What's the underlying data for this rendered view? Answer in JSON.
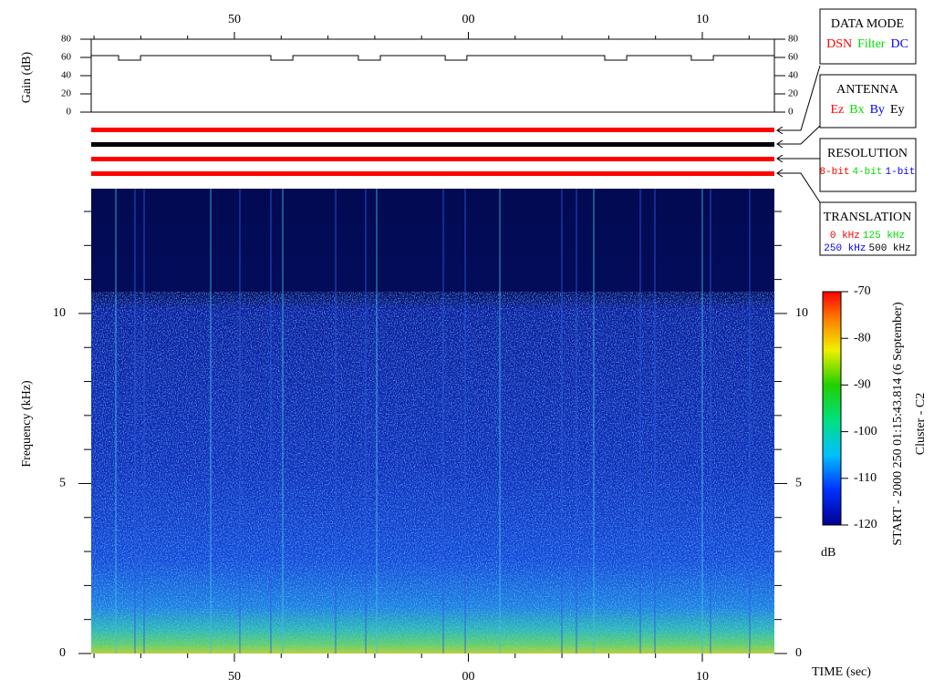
{
  "chart_data": [
    {
      "type": "line",
      "ylabel": "Gain (dB)",
      "xlim": [
        43.88,
        73.08
      ],
      "xticks": [
        50,
        {
          "value": 60,
          "label": "00"
        },
        {
          "value": 70,
          "label": "10"
        }
      ],
      "xminorticks": [
        44,
        46,
        48,
        52,
        54,
        56,
        58,
        62,
        64,
        66,
        68,
        72
      ],
      "ylim": [
        0,
        80
      ],
      "yticks": [
        0,
        20,
        40,
        60,
        80
      ],
      "color": "#000000",
      "x": [
        43.88,
        45.05,
        45.05,
        45.99,
        45.99,
        51.56,
        51.56,
        52.5,
        52.5,
        55.3,
        55.3,
        56.24,
        56.24,
        59.01,
        59.01,
        59.94,
        59.94,
        65.83,
        65.83,
        66.77,
        66.77,
        69.53,
        69.53,
        70.47,
        70.47,
        73.08
      ],
      "values": [
        62,
        62,
        57,
        57,
        62,
        62,
        57,
        57,
        62,
        62,
        57,
        57,
        62,
        62,
        57,
        57,
        62,
        62,
        57,
        57,
        62,
        62,
        57,
        57,
        62,
        62
      ]
    },
    {
      "type": "heatmap",
      "ylabel": "Frequency (kHz)",
      "xlabel": "TIME (sec)",
      "xlim": [
        43.88,
        73.08
      ],
      "xticks": [
        50,
        {
          "value": 60,
          "label": "00"
        },
        {
          "value": 70,
          "label": "10"
        }
      ],
      "xminorticks": [
        44,
        46,
        48,
        52,
        54,
        56,
        58,
        62,
        64,
        66,
        68,
        72
      ],
      "ylim": [
        0,
        13.67
      ],
      "yticks": [
        0,
        5,
        10
      ],
      "yminorticks": [
        1,
        2,
        3,
        4,
        6,
        7,
        8,
        9,
        11,
        12,
        13
      ],
      "colorbar": {
        "lim": [
          -120,
          -70
        ],
        "ticks": [
          -70,
          -80,
          -90,
          -100,
          -110,
          -120
        ],
        "label": "dB"
      },
      "annotations": [
        "START - 2000 250 01:15:43.814 (6 September)",
        "Cluster - C2"
      ]
    }
  ],
  "status_colors": [
    "#ff0000",
    "#000000",
    "#ff0000",
    "#ff0000"
  ],
  "mode_boxes": [
    {
      "title": "DATA MODE",
      "rows": [
        [
          {
            "text": "DSN",
            "color": "#ff0000"
          },
          {
            "text": "Filter",
            "color": "#00dd00"
          },
          {
            "text": "DC",
            "color": "#0000ff"
          }
        ]
      ]
    },
    {
      "title": "ANTENNA",
      "rows": [
        [
          {
            "text": "Ez",
            "color": "#ff0000"
          },
          {
            "text": "Bx",
            "color": "#00dd00"
          },
          {
            "text": "By",
            "color": "#0000ff"
          },
          {
            "text": "Ey",
            "color": "#000000"
          }
        ]
      ]
    },
    {
      "title": "RESOLUTION",
      "rows": [
        [
          {
            "text": "8-bit",
            "color": "#ff0000"
          },
          {
            "text": "4-bit",
            "color": "#00dd00"
          },
          {
            "text": "1-bit",
            "color": "#0000ff"
          }
        ]
      ]
    },
    {
      "title": "TRANSLATION",
      "rows": [
        [
          {
            "text": "0 kHz",
            "color": "#ff0000"
          },
          {
            "text": "125 kHz",
            "color": "#00dd00"
          }
        ],
        [
          {
            "text": "250 kHz",
            "color": "#0000ff"
          },
          {
            "text": "500 kHz",
            "color": "#000000"
          }
        ]
      ]
    }
  ]
}
